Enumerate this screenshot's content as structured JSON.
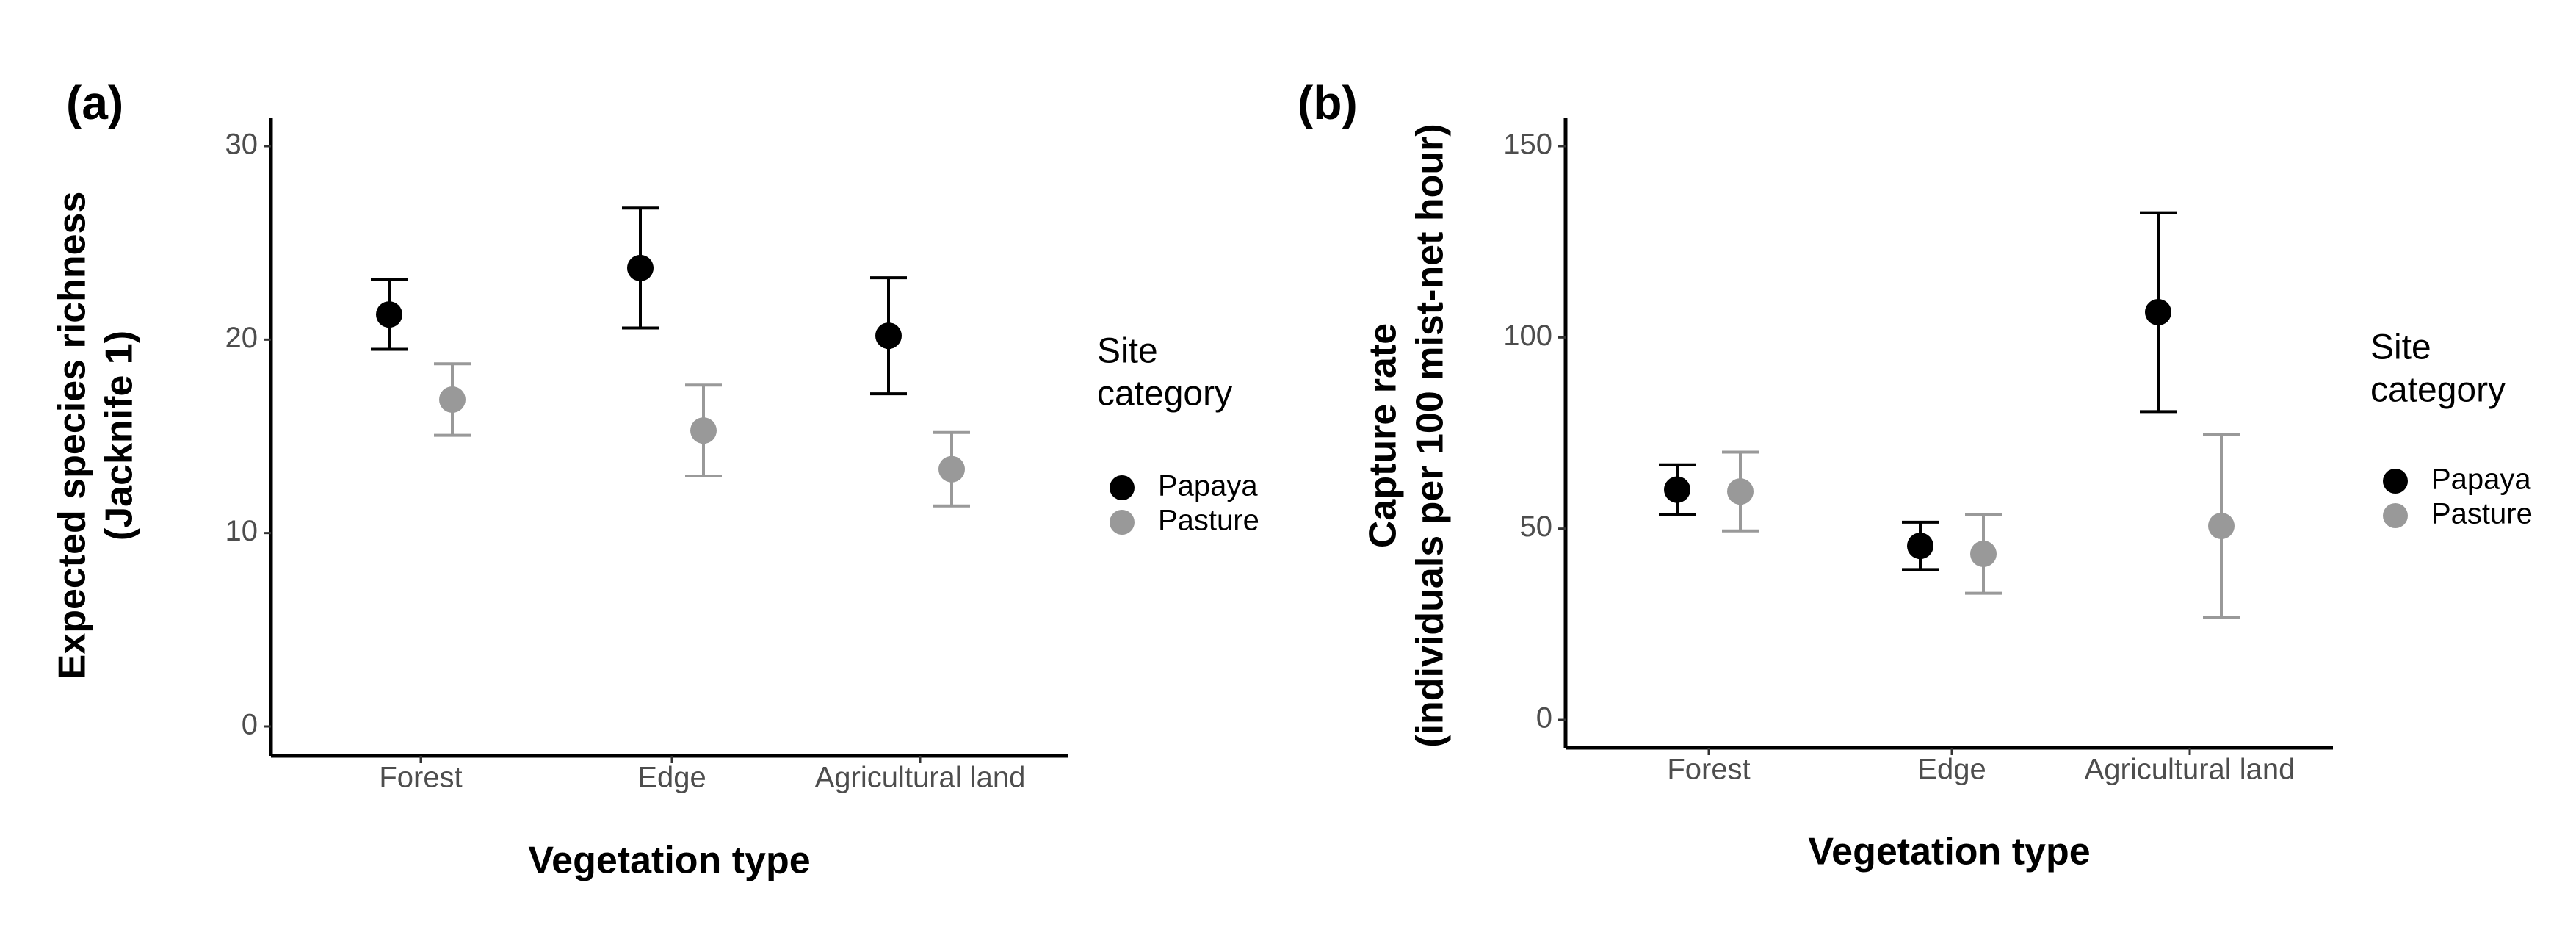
{
  "chart_data": [
    {
      "type": "errorbar",
      "panel_label": "(a)",
      "xlabel": "Vegetation type",
      "ylabel": [
        "Expected species richness",
        "(Jacknife 1)"
      ],
      "categories": [
        "Forest",
        "Edge",
        "Agricultural land"
      ],
      "ylim": [
        0,
        30
      ],
      "yticks": [
        0,
        10,
        20,
        30
      ],
      "legend_title": [
        "Site",
        "category"
      ],
      "legend": "right",
      "series": [
        {
          "name": "Papaya",
          "color": "#000000",
          "values": [
            21.3,
            23.7,
            20.2
          ],
          "errors": [
            1.8,
            3.1,
            3.0
          ]
        },
        {
          "name": "Pasture",
          "color": "#999999",
          "values": [
            16.9,
            15.3,
            13.3
          ],
          "errors": [
            1.85,
            2.35,
            1.9
          ]
        }
      ]
    },
    {
      "type": "errorbar",
      "panel_label": "(b)",
      "xlabel": "Vegetation type",
      "ylabel": [
        "Capture rate",
        "(individuals per 100 mist-net hour)"
      ],
      "categories": [
        "Forest",
        "Edge",
        "Agricultural land"
      ],
      "ylim": [
        0,
        150
      ],
      "yticks": [
        0,
        50,
        100,
        150
      ],
      "legend_title": [
        "Site",
        "category"
      ],
      "legend": "right",
      "series": [
        {
          "name": "Papaya",
          "color": "#000000",
          "values": [
            60.2,
            45.5,
            106.6
          ],
          "errors": [
            6.5,
            6.2,
            26.0
          ]
        },
        {
          "name": "Pasture",
          "color": "#999999",
          "values": [
            59.7,
            43.4,
            50.7
          ],
          "errors": [
            10.3,
            10.3,
            23.9
          ]
        }
      ]
    }
  ]
}
